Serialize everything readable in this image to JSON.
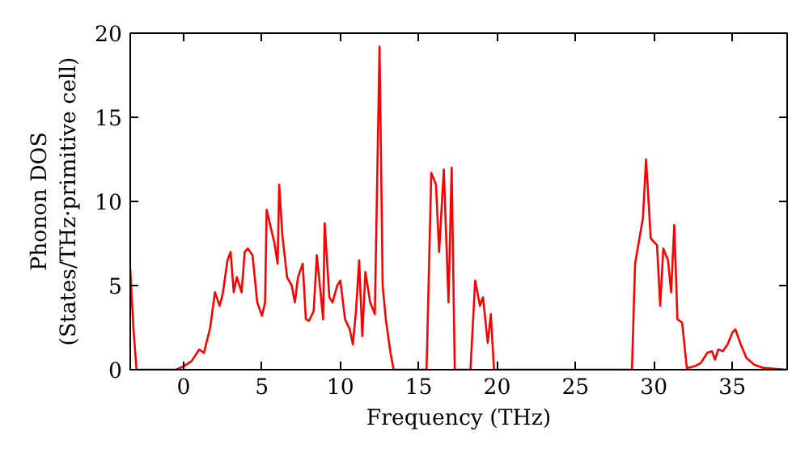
{
  "chart_data": {
    "type": "line",
    "xlabel": "Frequency (THz)",
    "ylabel": "Phonon DOS\n(States/THz·primitive cell)",
    "xlim": [
      -3.4,
      38.5
    ],
    "ylim": [
      0,
      20
    ],
    "xticks": [
      0,
      5,
      10,
      15,
      20,
      25,
      30,
      35
    ],
    "yticks": [
      0,
      5,
      10,
      15,
      20
    ],
    "grid": false,
    "marker": "none",
    "line_style": "solid",
    "series": [
      {
        "color": "#ff0000",
        "x": [
          -3.4,
          -3.2,
          -3.0,
          -0.5,
          0,
          0.5,
          1,
          1.3,
          1.7,
          2,
          2.3,
          2.5,
          2.8,
          3.0,
          3.2,
          3.4,
          3.7,
          3.9,
          4.1,
          4.4,
          4.7,
          5.0,
          5.2,
          5.3,
          5.8,
          6.0,
          6.1,
          6.3,
          6.6,
          6.9,
          7.1,
          7.3,
          7.6,
          7.8,
          8.0,
          8.3,
          8.5,
          8.8,
          8.9,
          9.0,
          9.3,
          9.5,
          9.8,
          10.0,
          10.3,
          10.6,
          10.8,
          11.0,
          11.2,
          11.4,
          11.6,
          11.9,
          12.2,
          12.5,
          12.7,
          12.9,
          13.2,
          13.4,
          15.5,
          15.8,
          16.1,
          16.3,
          16.6,
          16.9,
          17.1,
          17.3,
          18.3,
          18.6,
          18.9,
          19.1,
          19.4,
          19.6,
          19.8,
          28.6,
          28.8,
          29.3,
          29.5,
          29.8,
          30.2,
          30.4,
          30.6,
          30.9,
          31.1,
          31.3,
          31.5,
          31.8,
          32.1,
          32.6,
          33.0,
          33.4,
          33.7,
          33.9,
          34.1,
          34.4,
          34.7,
          35.0,
          35.2,
          35.5,
          35.9,
          36.4,
          37.0,
          38.5
        ],
        "values": [
          6.0,
          2.5,
          0,
          0,
          0.2,
          0.5,
          1.2,
          1.0,
          2.5,
          4.6,
          3.8,
          4.5,
          6.5,
          7.0,
          4.6,
          5.5,
          4.6,
          7.0,
          7.2,
          6.8,
          4.0,
          3.2,
          4.0,
          9.5,
          7.5,
          6.3,
          11.0,
          8.0,
          5.5,
          5.0,
          4.0,
          5.5,
          6.3,
          3.0,
          2.9,
          3.5,
          6.8,
          4.0,
          3.0,
          8.7,
          4.3,
          4.0,
          5.0,
          5.3,
          3.0,
          2.4,
          1.5,
          3.5,
          6.5,
          2.0,
          5.8,
          4.0,
          3.3,
          19.2,
          5.0,
          3.0,
          1.0,
          0,
          0,
          11.7,
          11.0,
          7.0,
          11.9,
          4.0,
          12.0,
          0,
          0,
          5.3,
          3.8,
          4.3,
          1.6,
          3.3,
          0,
          0,
          6.3,
          9.0,
          12.5,
          7.8,
          7.4,
          3.8,
          7.2,
          6.5,
          4.6,
          8.6,
          3.0,
          2.8,
          0.1,
          0.2,
          0.4,
          1.0,
          1.1,
          0.6,
          1.2,
          1.1,
          1.5,
          2.2,
          2.4,
          1.6,
          0.7,
          0.3,
          0.1,
          0
        ]
      }
    ]
  }
}
